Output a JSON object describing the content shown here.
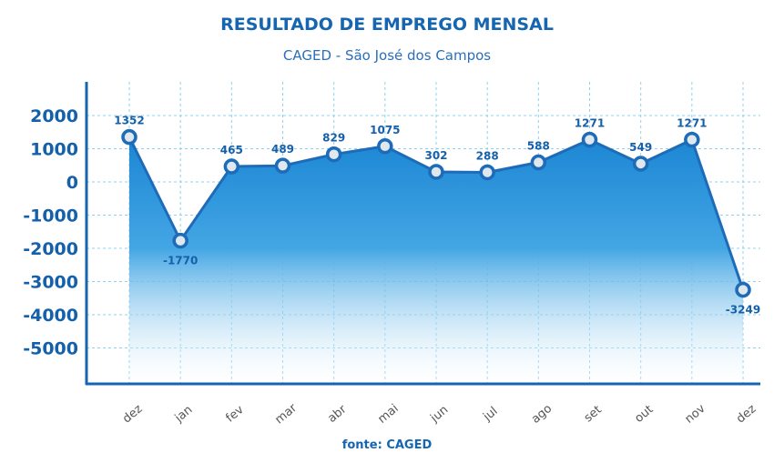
{
  "chart_data": {
    "type": "area",
    "title": "RESULTADO DE EMPREGO MENSAL",
    "subtitle": "CAGED - São José dos Campos",
    "source": "fonte: CAGED",
    "xlabel": "",
    "ylabel": "",
    "categories": [
      "dez",
      "jan",
      "fev",
      "mar",
      "abr",
      "mai",
      "jun",
      "jul",
      "ago",
      "set",
      "out",
      "nov",
      "dez"
    ],
    "values": [
      1352,
      -1770,
      465,
      489,
      829,
      1075,
      302,
      288,
      588,
      1271,
      549,
      1271,
      -3249
    ],
    "value_labels": [
      "1352",
      "-1770",
      "465",
      "489",
      "829",
      "1075",
      "302",
      "288",
      "588",
      "1271",
      "549",
      "1271",
      "-3249"
    ],
    "yticks": [
      2000,
      1000,
      0,
      -1000,
      -2000,
      -3000,
      -4000,
      -5000
    ],
    "ylim": [
      -6200,
      3000
    ],
    "grid": true,
    "colors": {
      "line": "#1e6bb8",
      "fill_top": "#1c86d4",
      "fill_bottom": "#ffffff",
      "marker_fill": "#dfe7ef",
      "axis": "#1565b0",
      "grid": "#8fd0ee"
    }
  }
}
